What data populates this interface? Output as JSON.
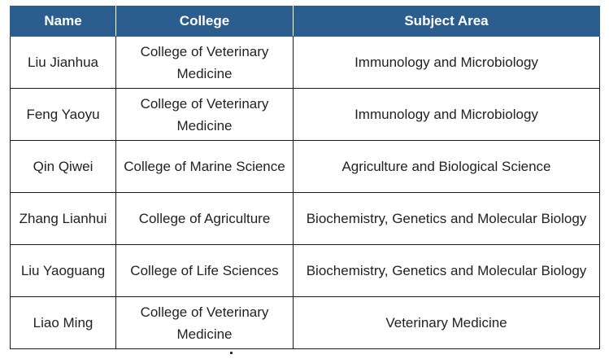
{
  "table": {
    "headers": [
      "Name",
      "College",
      "Subject Area"
    ],
    "rows": [
      [
        "Liu Jianhua",
        "College of Veterinary Medicine",
        "Immunology and Microbiology"
      ],
      [
        "Feng Yaoyu",
        "College of Veterinary Medicine",
        "Immunology and Microbiology"
      ],
      [
        "Qin Qiwei",
        "College of Marine Science",
        "Agriculture and Biological Science"
      ],
      [
        "Zhang Lianhui",
        "College of Agriculture",
        "Biochemistry, Genetics and Molecular Biology"
      ],
      [
        "Liu Yaoguang",
        "College of Life Sciences",
        "Biochemistry, Genetics and Molecular Biology"
      ],
      [
        "Liao Ming",
        "College of Veterinary Medicine",
        "Veterinary Medicine"
      ]
    ]
  },
  "colors": {
    "header_bg": "#2c5d8f",
    "header_text": "#ffffff",
    "border": "#1a1a1a"
  }
}
